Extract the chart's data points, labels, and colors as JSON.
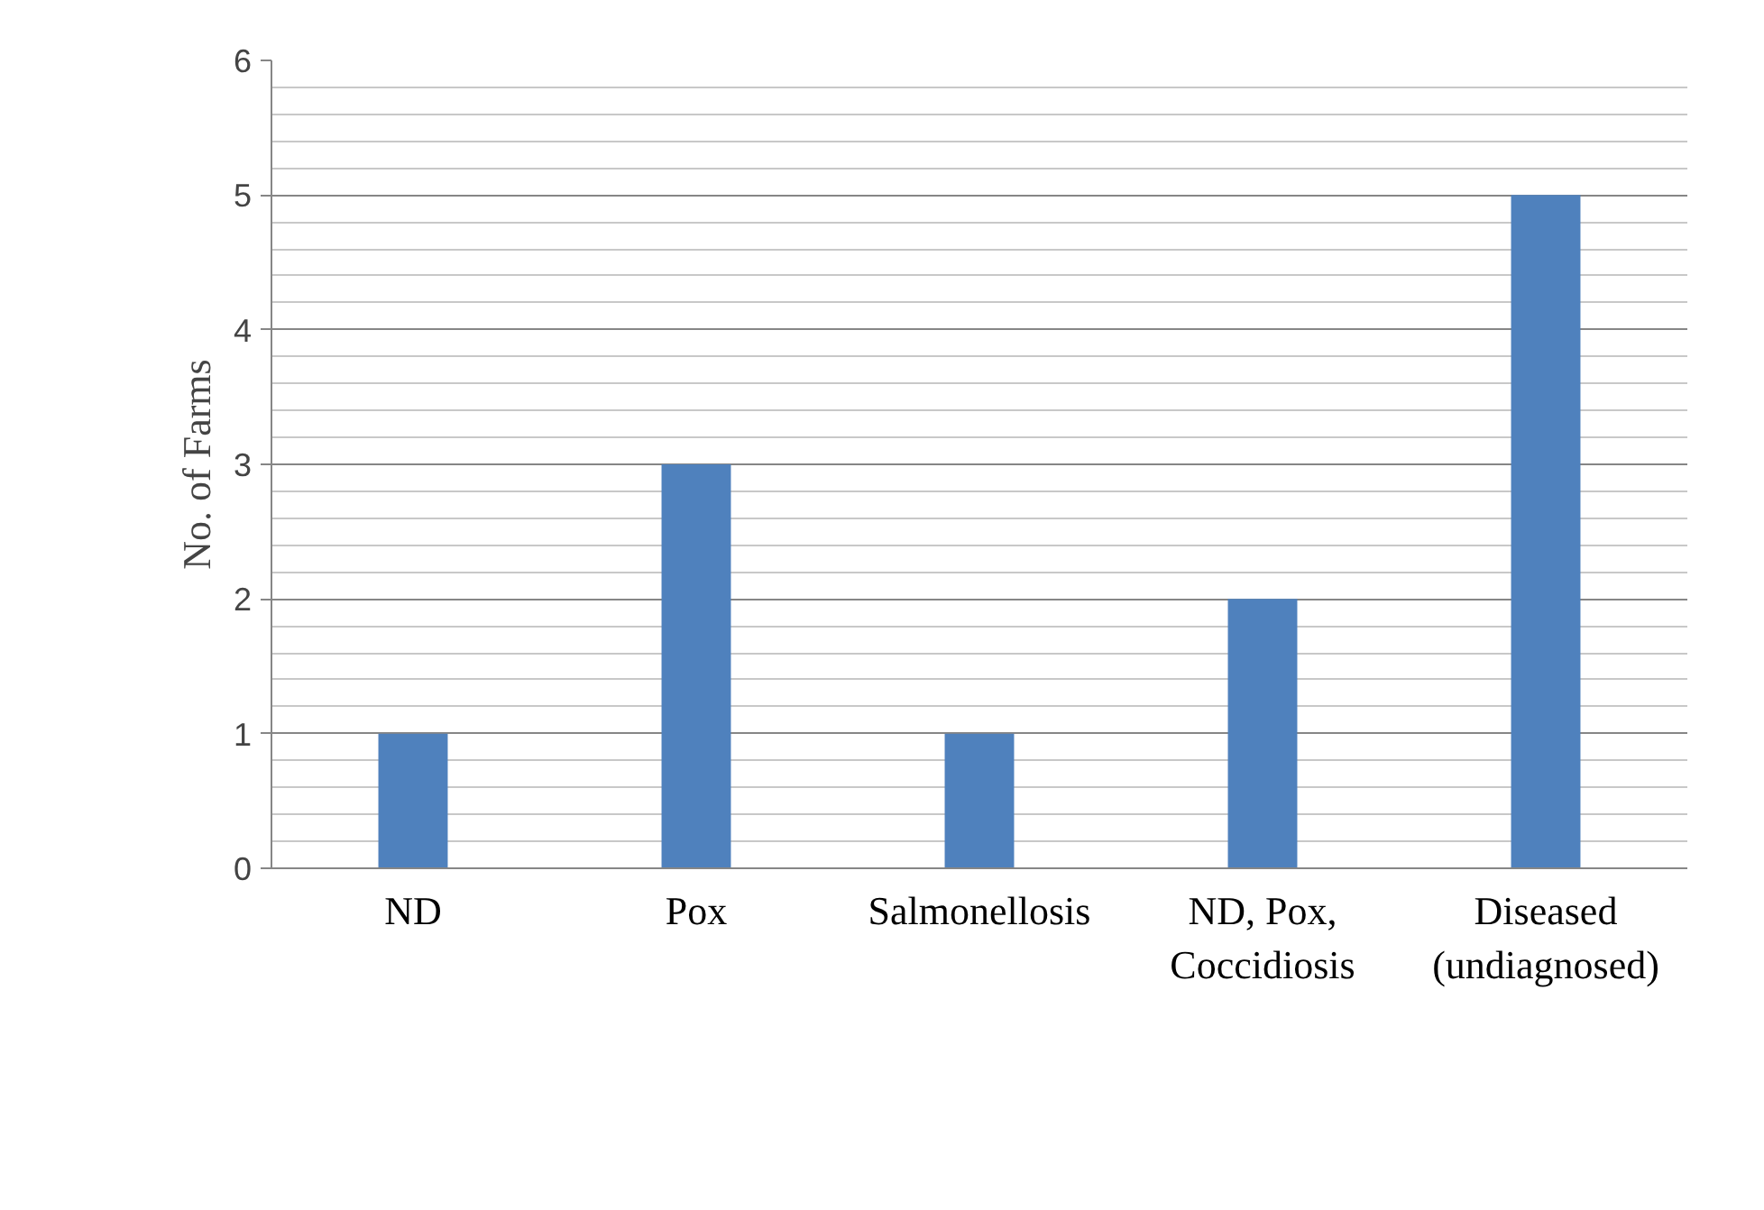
{
  "chart_data": {
    "type": "bar",
    "ylabel": "No. of Farms",
    "categories": [
      "ND",
      "Pox",
      "Salmonellosis",
      "ND, Pox, Coccidiosis",
      "Diseased (undiagnosed)"
    ],
    "values": [
      1,
      3,
      1,
      2,
      5
    ],
    "color": "#4f81bd",
    "ylim": [
      0,
      6
    ],
    "yticks": [
      0,
      1,
      2,
      3,
      4,
      5,
      6
    ],
    "grid": "y"
  }
}
